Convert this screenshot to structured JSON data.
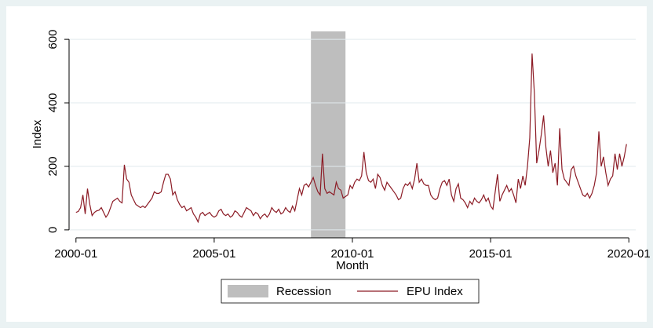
{
  "chart_data": {
    "type": "line",
    "y_label": "Index",
    "x_label": "Month",
    "x": [
      "2000-01",
      "2000-02",
      "2000-03",
      "2000-04",
      "2000-05",
      "2000-06",
      "2000-07",
      "2000-08",
      "2000-09",
      "2000-10",
      "2000-11",
      "2000-12",
      "2001-01",
      "2001-02",
      "2001-03",
      "2001-04",
      "2001-05",
      "2001-06",
      "2001-07",
      "2001-08",
      "2001-09",
      "2001-10",
      "2001-11",
      "2001-12",
      "2002-01",
      "2002-02",
      "2002-03",
      "2002-04",
      "2002-05",
      "2002-06",
      "2002-07",
      "2002-08",
      "2002-09",
      "2002-10",
      "2002-11",
      "2002-12",
      "2003-01",
      "2003-02",
      "2003-03",
      "2003-04",
      "2003-05",
      "2003-06",
      "2003-07",
      "2003-08",
      "2003-09",
      "2003-10",
      "2003-11",
      "2003-12",
      "2004-01",
      "2004-02",
      "2004-03",
      "2004-04",
      "2004-05",
      "2004-06",
      "2004-07",
      "2004-08",
      "2004-09",
      "2004-10",
      "2004-11",
      "2004-12",
      "2005-01",
      "2005-02",
      "2005-03",
      "2005-04",
      "2005-05",
      "2005-06",
      "2005-07",
      "2005-08",
      "2005-09",
      "2005-10",
      "2005-11",
      "2005-12",
      "2006-01",
      "2006-02",
      "2006-03",
      "2006-04",
      "2006-05",
      "2006-06",
      "2006-07",
      "2006-08",
      "2006-09",
      "2006-10",
      "2006-11",
      "2006-12",
      "2007-01",
      "2007-02",
      "2007-03",
      "2007-04",
      "2007-05",
      "2007-06",
      "2007-07",
      "2007-08",
      "2007-09",
      "2007-10",
      "2007-11",
      "2007-12",
      "2008-01",
      "2008-02",
      "2008-03",
      "2008-04",
      "2008-05",
      "2008-06",
      "2008-07",
      "2008-08",
      "2008-09",
      "2008-10",
      "2008-11",
      "2008-12",
      "2009-01",
      "2009-02",
      "2009-03",
      "2009-04",
      "2009-05",
      "2009-06",
      "2009-07",
      "2009-08",
      "2009-09",
      "2009-10",
      "2009-11",
      "2009-12",
      "2010-01",
      "2010-02",
      "2010-03",
      "2010-04",
      "2010-05",
      "2010-06",
      "2010-07",
      "2010-08",
      "2010-09",
      "2010-10",
      "2010-11",
      "2010-12",
      "2011-01",
      "2011-02",
      "2011-03",
      "2011-04",
      "2011-05",
      "2011-06",
      "2011-07",
      "2011-08",
      "2011-09",
      "2011-10",
      "2011-11",
      "2011-12",
      "2012-01",
      "2012-02",
      "2012-03",
      "2012-04",
      "2012-05",
      "2012-06",
      "2012-07",
      "2012-08",
      "2012-09",
      "2012-10",
      "2012-11",
      "2012-12",
      "2013-01",
      "2013-02",
      "2013-03",
      "2013-04",
      "2013-05",
      "2013-06",
      "2013-07",
      "2013-08",
      "2013-09",
      "2013-10",
      "2013-11",
      "2013-12",
      "2014-01",
      "2014-02",
      "2014-03",
      "2014-04",
      "2014-05",
      "2014-06",
      "2014-07",
      "2014-08",
      "2014-09",
      "2014-10",
      "2014-11",
      "2014-12",
      "2015-01",
      "2015-02",
      "2015-03",
      "2015-04",
      "2015-05",
      "2015-06",
      "2015-07",
      "2015-08",
      "2015-09",
      "2015-10",
      "2015-11",
      "2015-12",
      "2016-01",
      "2016-02",
      "2016-03",
      "2016-04",
      "2016-05",
      "2016-06",
      "2016-07",
      "2016-08",
      "2016-09",
      "2016-10",
      "2016-11",
      "2016-12",
      "2017-01",
      "2017-02",
      "2017-03",
      "2017-04",
      "2017-05",
      "2017-06",
      "2017-07",
      "2017-08",
      "2017-09",
      "2017-10",
      "2017-11",
      "2017-12",
      "2018-01",
      "2018-02",
      "2018-03",
      "2018-04",
      "2018-05",
      "2018-06",
      "2018-07",
      "2018-08",
      "2018-09",
      "2018-10",
      "2018-11",
      "2018-12",
      "2019-01",
      "2019-02",
      "2019-03",
      "2019-04",
      "2019-05",
      "2019-06",
      "2019-07",
      "2019-08",
      "2019-09",
      "2019-10",
      "2019-11",
      "2019-12"
    ],
    "series": [
      {
        "name": "EPU Index",
        "color": "#8c1b25",
        "values": [
          55,
          58,
          70,
          110,
          50,
          130,
          80,
          45,
          55,
          60,
          62,
          70,
          55,
          40,
          50,
          70,
          90,
          95,
          100,
          90,
          85,
          205,
          160,
          150,
          110,
          95,
          80,
          75,
          70,
          75,
          70,
          80,
          90,
          100,
          120,
          115,
          115,
          120,
          150,
          175,
          175,
          160,
          110,
          120,
          95,
          80,
          70,
          75,
          60,
          65,
          70,
          50,
          40,
          25,
          50,
          55,
          45,
          50,
          55,
          45,
          40,
          45,
          60,
          65,
          50,
          45,
          50,
          40,
          45,
          60,
          55,
          45,
          40,
          55,
          70,
          65,
          60,
          45,
          55,
          50,
          35,
          45,
          50,
          40,
          50,
          70,
          60,
          55,
          65,
          50,
          55,
          70,
          60,
          55,
          75,
          60,
          95,
          130,
          110,
          140,
          145,
          135,
          150,
          165,
          140,
          120,
          110,
          240,
          130,
          115,
          120,
          115,
          110,
          150,
          130,
          125,
          100,
          105,
          110,
          140,
          130,
          150,
          160,
          155,
          170,
          245,
          180,
          155,
          150,
          160,
          130,
          175,
          165,
          140,
          125,
          150,
          140,
          130,
          120,
          110,
          95,
          100,
          130,
          145,
          140,
          150,
          130,
          160,
          210,
          150,
          160,
          145,
          140,
          140,
          110,
          100,
          95,
          100,
          130,
          150,
          155,
          140,
          160,
          110,
          90,
          130,
          145,
          100,
          95,
          85,
          70,
          90,
          80,
          100,
          90,
          85,
          95,
          110,
          90,
          100,
          75,
          65,
          120,
          175,
          90,
          110,
          125,
          140,
          120,
          130,
          110,
          85,
          160,
          130,
          170,
          140,
          200,
          290,
          555,
          430,
          210,
          250,
          300,
          360,
          260,
          200,
          250,
          180,
          210,
          140,
          320,
          190,
          160,
          150,
          140,
          190,
          200,
          170,
          150,
          130,
          110,
          105,
          115,
          100,
          115,
          140,
          180,
          310,
          200,
          230,
          180,
          140,
          160,
          170,
          240,
          190,
          240,
          200,
          230,
          270
        ]
      }
    ],
    "recession": {
      "name": "Recession",
      "range": [
        "2008-07",
        "2009-10"
      ],
      "color": "#bebebe"
    },
    "xlim": [
      "1999-10",
      "2020-04"
    ],
    "xticks": [
      "2000-01",
      "2005-01",
      "2010-01",
      "2015-01",
      "2020-01"
    ],
    "ylim": [
      -25,
      625
    ],
    "yticks": [
      0,
      200,
      400,
      600
    ],
    "grid": true,
    "legend": "bottom"
  }
}
